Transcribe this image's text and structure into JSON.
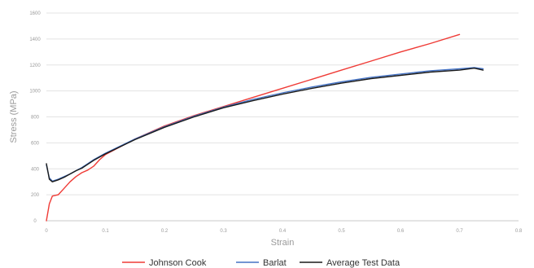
{
  "chart_data": {
    "type": "line",
    "title": "",
    "xlabel": "Strain",
    "ylabel": "Stress (MPa)",
    "xlim": [
      0,
      0.8
    ],
    "ylim": [
      0,
      1600
    ],
    "x_ticks": [
      "0",
      "0.1",
      "0.2",
      "0.3",
      "0.4",
      "0.5",
      "0.6",
      "0.7",
      "0.8"
    ],
    "y_ticks": [
      "0",
      "200",
      "400",
      "600",
      "800",
      "1000",
      "1200",
      "1400",
      "1600"
    ],
    "grid": "horizontal",
    "legend_position": "bottom",
    "series": [
      {
        "name": "Johnson Cook",
        "color": "#ef3b36",
        "points": [
          [
            0.0,
            0
          ],
          [
            0.005,
            130
          ],
          [
            0.01,
            190
          ],
          [
            0.02,
            200
          ],
          [
            0.03,
            250
          ],
          [
            0.04,
            300
          ],
          [
            0.05,
            340
          ],
          [
            0.06,
            370
          ],
          [
            0.07,
            390
          ],
          [
            0.08,
            420
          ],
          [
            0.09,
            470
          ],
          [
            0.1,
            510
          ],
          [
            0.15,
            630
          ],
          [
            0.2,
            730
          ],
          [
            0.25,
            810
          ],
          [
            0.3,
            880
          ],
          [
            0.35,
            950
          ],
          [
            0.4,
            1020
          ],
          [
            0.45,
            1090
          ],
          [
            0.5,
            1160
          ],
          [
            0.55,
            1230
          ],
          [
            0.6,
            1300
          ],
          [
            0.65,
            1365
          ],
          [
            0.7,
            1435
          ]
        ]
      },
      {
        "name": "Barlat",
        "color": "#4472c4",
        "points": [
          [
            0.0,
            430
          ],
          [
            0.005,
            330
          ],
          [
            0.01,
            305
          ],
          [
            0.02,
            320
          ],
          [
            0.03,
            340
          ],
          [
            0.04,
            360
          ],
          [
            0.05,
            385
          ],
          [
            0.06,
            410
          ],
          [
            0.07,
            440
          ],
          [
            0.08,
            470
          ],
          [
            0.1,
            520
          ],
          [
            0.15,
            630
          ],
          [
            0.2,
            725
          ],
          [
            0.25,
            805
          ],
          [
            0.3,
            875
          ],
          [
            0.35,
            935
          ],
          [
            0.4,
            985
          ],
          [
            0.45,
            1030
          ],
          [
            0.5,
            1070
          ],
          [
            0.55,
            1105
          ],
          [
            0.6,
            1130
          ],
          [
            0.65,
            1155
          ],
          [
            0.7,
            1170
          ],
          [
            0.725,
            1180
          ],
          [
            0.74,
            1170
          ]
        ]
      },
      {
        "name": "Average Test Data",
        "color": "#1a1a1a",
        "points": [
          [
            0.0,
            440
          ],
          [
            0.005,
            320
          ],
          [
            0.01,
            300
          ],
          [
            0.02,
            315
          ],
          [
            0.03,
            335
          ],
          [
            0.04,
            360
          ],
          [
            0.05,
            385
          ],
          [
            0.06,
            405
          ],
          [
            0.07,
            435
          ],
          [
            0.08,
            465
          ],
          [
            0.1,
            515
          ],
          [
            0.15,
            625
          ],
          [
            0.2,
            720
          ],
          [
            0.25,
            800
          ],
          [
            0.3,
            870
          ],
          [
            0.35,
            925
          ],
          [
            0.4,
            975
          ],
          [
            0.45,
            1020
          ],
          [
            0.5,
            1060
          ],
          [
            0.55,
            1095
          ],
          [
            0.6,
            1120
          ],
          [
            0.65,
            1145
          ],
          [
            0.7,
            1160
          ],
          [
            0.725,
            1175
          ],
          [
            0.74,
            1160
          ]
        ]
      }
    ]
  }
}
